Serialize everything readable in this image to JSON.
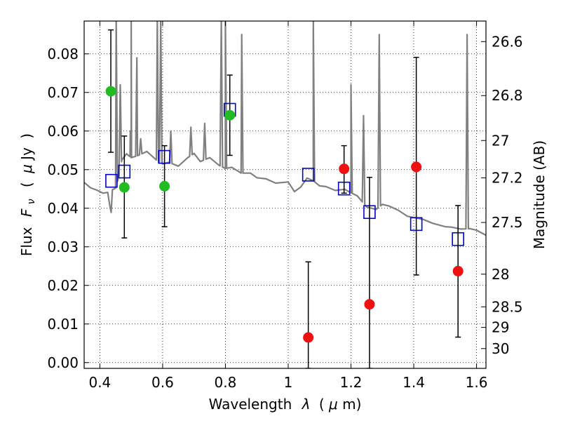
{
  "chart_data": {
    "type": "scatter",
    "xlabel_text": "Wavelength",
    "xlabel_symbol": "λ",
    "xlabel_unit_open": "(",
    "xlabel_unit_mu": "μ",
    "xlabel_unit_rest": "m)",
    "ylabel_text": "Flux",
    "ylabel_symbol": "F",
    "ylabel_sub": "ν",
    "ylabel_unit_open": "(",
    "ylabel_unit_mu": "μ",
    "ylabel_unit_rest": "Jy",
    "ylabel_unit_close": ")",
    "y2label": "Magnitude (AB)",
    "xlim": [
      0.35,
      1.63
    ],
    "ylim": [
      -0.0015,
      0.0885
    ],
    "x_ticks": [
      {
        "value": 0.4,
        "label": "0.4"
      },
      {
        "value": 0.6,
        "label": "0.6"
      },
      {
        "value": 0.8,
        "label": "0.8"
      },
      {
        "value": 1.0,
        "label": "1"
      },
      {
        "value": 1.2,
        "label": "1.2"
      },
      {
        "value": 1.4,
        "label": "1.4"
      },
      {
        "value": 1.6,
        "label": "1.6"
      }
    ],
    "y_ticks": [
      {
        "value": 0.0,
        "label": "0.00"
      },
      {
        "value": 0.01,
        "label": "0.01"
      },
      {
        "value": 0.02,
        "label": "0.02"
      },
      {
        "value": 0.03,
        "label": "0.03"
      },
      {
        "value": 0.04,
        "label": "0.04"
      },
      {
        "value": 0.05,
        "label": "0.05"
      },
      {
        "value": 0.06,
        "label": "0.06"
      },
      {
        "value": 0.07,
        "label": "0.07"
      },
      {
        "value": 0.08,
        "label": "0.08"
      }
    ],
    "mag_ticks": [
      {
        "value": 26.6,
        "label": "26.6"
      },
      {
        "value": 26.8,
        "label": "26.8"
      },
      {
        "value": 27.0,
        "label": "27"
      },
      {
        "value": 27.2,
        "label": "27.2"
      },
      {
        "value": 27.5,
        "label": "27.5"
      },
      {
        "value": 28.0,
        "label": "28"
      },
      {
        "value": 28.5,
        "label": "28.5"
      },
      {
        "value": 29.0,
        "label": "29"
      },
      {
        "value": 30.0,
        "label": "30"
      }
    ],
    "grid": true,
    "colors": {
      "model": "#808080",
      "model_photometry": "#0000cc",
      "optical_detections": "#22bb22",
      "nir_detections": "#ee1111",
      "errorbar": "#000000"
    },
    "series": [
      {
        "name": "model_photometry",
        "marker": "open-square",
        "x": [
          0.437,
          0.478,
          0.605,
          0.814,
          1.064,
          1.178,
          1.259,
          1.408,
          1.541
        ],
        "y": [
          0.0471,
          0.0495,
          0.0533,
          0.0655,
          0.0487,
          0.0451,
          0.039,
          0.0359,
          0.032
        ]
      },
      {
        "name": "optical_detections",
        "marker": "filled-circle",
        "x": [
          0.435,
          0.478,
          0.606,
          0.814
        ],
        "y": [
          0.0703,
          0.0454,
          0.0457,
          0.0641
        ],
        "yerr_low": [
          0.0545,
          0.0323,
          0.0352,
          0.0537
        ],
        "yerr_high": [
          0.0862,
          0.0587,
          0.0562,
          0.0745
        ]
      },
      {
        "name": "nir_detections",
        "marker": "filled-circle",
        "x": [
          1.064,
          1.178,
          1.259,
          1.408,
          1.541
        ],
        "y": [
          0.0065,
          0.0502,
          0.0151,
          0.0507,
          0.0237
        ],
        "yerr_low": [
          -0.0015,
          0.0439,
          -0.0015,
          0.0227,
          0.0066
        ],
        "yerr_high": [
          0.0261,
          0.0562,
          0.048,
          0.0791,
          0.0407
        ]
      }
    ],
    "model_spectrum": {
      "x": [
        0.35,
        0.37,
        0.39,
        0.41,
        0.425,
        0.432,
        0.436,
        0.44,
        0.45,
        0.46,
        0.47,
        0.485,
        0.5,
        0.52,
        0.55,
        0.58,
        0.6,
        0.62,
        0.65,
        0.68,
        0.7,
        0.72,
        0.75,
        0.78,
        0.8,
        0.82,
        0.85,
        0.88,
        0.9,
        0.93,
        0.96,
        1.0,
        1.02,
        1.04,
        1.06,
        1.08,
        1.1,
        1.12,
        1.15,
        1.18,
        1.2,
        1.22,
        1.25,
        1.28,
        1.3,
        1.32,
        1.35,
        1.38,
        1.4,
        1.43,
        1.46,
        1.5,
        1.52,
        1.55,
        1.58,
        1.6,
        1.63
      ],
      "y": [
        0.0467,
        0.0453,
        0.0447,
        0.0439,
        0.0441,
        0.0405,
        0.0389,
        0.0448,
        0.0452,
        0.0481,
        0.0525,
        0.0541,
        0.0531,
        0.0536,
        0.0547,
        0.0525,
        0.0515,
        0.0519,
        0.0509,
        0.0531,
        0.0542,
        0.0521,
        0.0531,
        0.0511,
        0.0503,
        0.0506,
        0.0491,
        0.0491,
        0.0479,
        0.0476,
        0.0465,
        0.0468,
        0.0443,
        0.0455,
        0.0478,
        0.0471,
        0.0458,
        0.0456,
        0.0446,
        0.0449,
        0.044,
        0.0432,
        0.0403,
        0.0397,
        0.041,
        0.0406,
        0.0395,
        0.0379,
        0.0376,
        0.0371,
        0.0361,
        0.0352,
        0.0351,
        0.0346,
        0.0347,
        0.0343,
        0.033
      ]
    },
    "emission_lines": [
      {
        "x": 0.452,
        "peak": 0.089
      },
      {
        "x": 0.465,
        "peak": 0.072
      },
      {
        "x": 0.497,
        "peak": 0.06
      },
      {
        "x": 0.5,
        "peak": 0.089
      },
      {
        "x": 0.518,
        "peak": 0.079
      },
      {
        "x": 0.53,
        "peak": 0.058
      },
      {
        "x": 0.583,
        "peak": 0.089
      },
      {
        "x": 0.594,
        "peak": 0.089
      },
      {
        "x": 0.626,
        "peak": 0.06
      },
      {
        "x": 0.69,
        "peak": 0.061
      },
      {
        "x": 0.734,
        "peak": 0.062
      },
      {
        "x": 0.787,
        "peak": 0.089
      },
      {
        "x": 0.8,
        "peak": 0.089
      },
      {
        "x": 0.852,
        "peak": 0.085
      },
      {
        "x": 1.08,
        "peak": 0.089
      },
      {
        "x": 1.2,
        "peak": 0.072
      },
      {
        "x": 1.24,
        "peak": 0.064
      },
      {
        "x": 1.29,
        "peak": 0.085
      },
      {
        "x": 1.57,
        "peak": 0.085
      }
    ]
  }
}
